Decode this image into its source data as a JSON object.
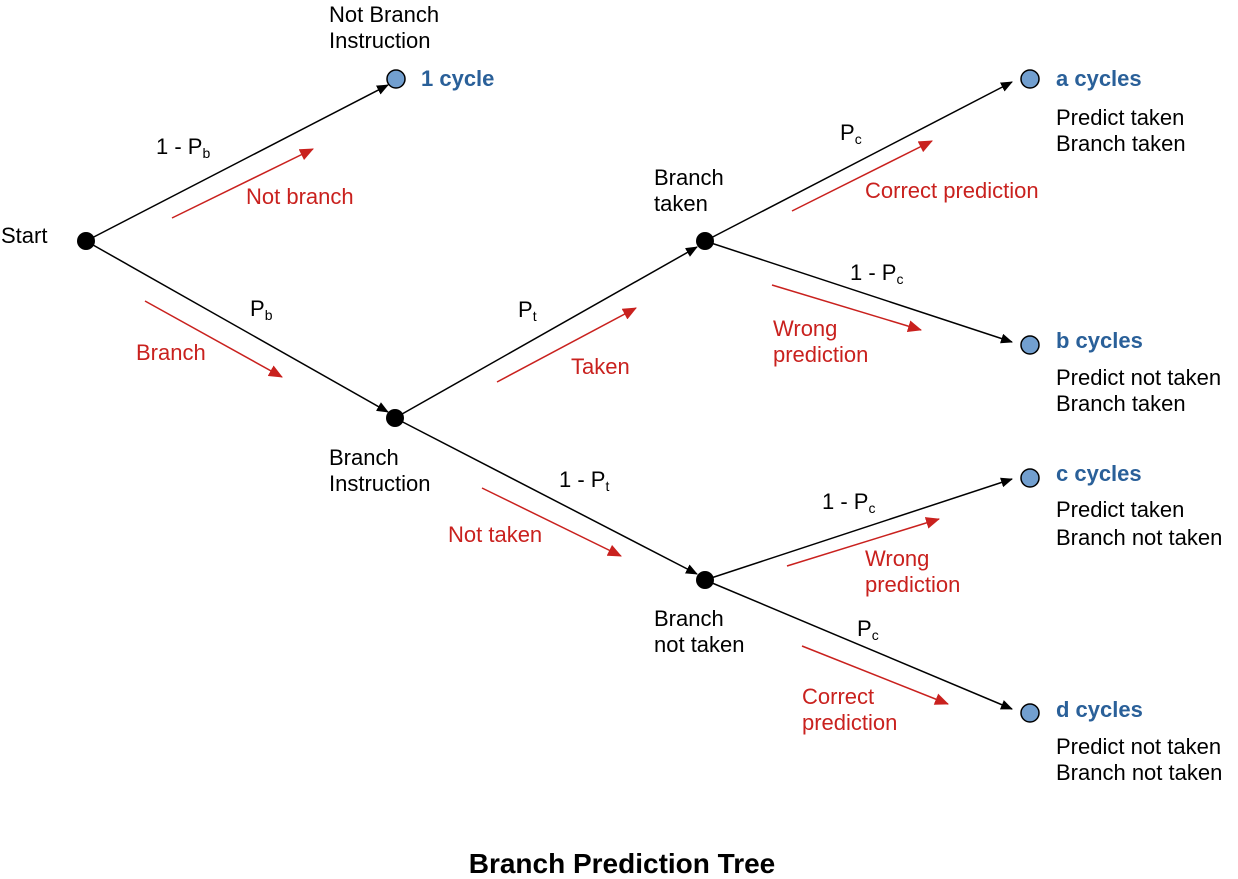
{
  "title": "Branch Prediction Tree",
  "nodes": {
    "start": "Start",
    "not_branch_line1": "Not Branch",
    "not_branch_line2": "Instruction",
    "branch_instr_line1": "Branch",
    "branch_instr_line2": "Instruction",
    "branch_taken_line1": "Branch",
    "branch_taken_line2": "taken",
    "branch_not_taken_line1": "Branch",
    "branch_not_taken_line2": "not taken"
  },
  "outcomes": [
    {
      "cycles": "1 cycle",
      "line1": "",
      "line2": ""
    },
    {
      "cycles": "a cycles",
      "line1": "Predict taken",
      "line2": "Branch taken"
    },
    {
      "cycles": "b cycles",
      "line1": "Predict not taken",
      "line2": "Branch taken"
    },
    {
      "cycles": "c cycles",
      "line1": "Predict taken",
      "line2": "Branch not taken"
    },
    {
      "cycles": "d cycles",
      "line1": "Predict not taken",
      "line2": "Branch not taken"
    }
  ],
  "probabilities": {
    "one_minus": "1 - ",
    "p": "P",
    "b": "b",
    "t": "t",
    "c": "c"
  },
  "flow_labels": {
    "not_branch": "Not branch",
    "branch": "Branch",
    "taken": "Taken",
    "not_taken": "Not taken",
    "correct_line1": "Correct prediction",
    "wrong_line1": "Wrong",
    "wrong_line2": "prediction",
    "correct2_line1": "Correct",
    "correct2_line2": "prediction",
    "wrong2_line1": "Wrong",
    "wrong2_line2": "prediction"
  }
}
